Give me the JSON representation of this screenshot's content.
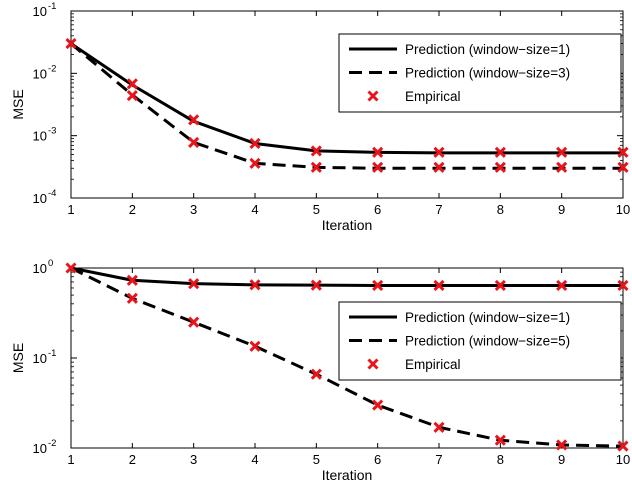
{
  "chart_data": [
    {
      "type": "line",
      "xlabel": "Iteration",
      "ylabel": "MSE",
      "yscale": "log",
      "xlim": [
        1,
        10
      ],
      "ylim": [
        0.0001,
        0.1
      ],
      "x": [
        1,
        2,
        3,
        4,
        5,
        6,
        7,
        8,
        9,
        10
      ],
      "xticks": [
        "1",
        "2",
        "3",
        "4",
        "5",
        "6",
        "7",
        "8",
        "9",
        "10"
      ],
      "ytick_values": [
        0.0001,
        0.001,
        0.01,
        0.1
      ],
      "ytick_exponents": [
        "-4",
        "-3",
        "-2",
        "-1"
      ],
      "legend_position": "top-right",
      "series": [
        {
          "name": "Prediction (window−size=1)",
          "style": "solid",
          "color": "#000000",
          "values": [
            0.03,
            0.0065,
            0.0017,
            0.00075,
            0.00057,
            0.00054,
            0.00053,
            0.00053,
            0.00053,
            0.00053
          ]
        },
        {
          "name": "Prediction (window−size=3)",
          "style": "dashed",
          "color": "#000000",
          "values": [
            0.03,
            0.0045,
            0.00078,
            0.00036,
            0.00031,
            0.0003,
            0.0003,
            0.0003,
            0.0003,
            0.0003
          ]
        },
        {
          "name": "Empirical",
          "style": "marker",
          "color": "#e8141a",
          "points": [
            [
              1,
              0.03
            ],
            [
              2,
              0.0068
            ],
            [
              3,
              0.0018
            ],
            [
              4,
              0.00075
            ],
            [
              5,
              0.00057
            ],
            [
              6,
              0.00054
            ],
            [
              7,
              0.00054
            ],
            [
              8,
              0.00054
            ],
            [
              9,
              0.00054
            ],
            [
              10,
              0.00054
            ],
            [
              2,
              0.0044
            ],
            [
              3,
              0.00078
            ],
            [
              4,
              0.00036
            ],
            [
              5,
              0.00031
            ],
            [
              6,
              0.00031
            ],
            [
              7,
              0.00031
            ],
            [
              8,
              0.00031
            ],
            [
              9,
              0.00031
            ],
            [
              10,
              0.00031
            ]
          ]
        }
      ]
    },
    {
      "type": "line",
      "xlabel": "Iteration",
      "ylabel": "MSE",
      "yscale": "log",
      "xlim": [
        1,
        10
      ],
      "ylim": [
        0.01,
        1
      ],
      "x": [
        1,
        2,
        3,
        4,
        5,
        6,
        7,
        8,
        9,
        10
      ],
      "xticks": [
        "1",
        "2",
        "3",
        "4",
        "5",
        "6",
        "7",
        "8",
        "9",
        "10"
      ],
      "ytick_values": [
        0.01,
        0.1,
        1
      ],
      "ytick_exponents": [
        "-2",
        "-1",
        "0"
      ],
      "legend_position": "right",
      "series": [
        {
          "name": "Prediction (window−size=1)",
          "style": "solid",
          "color": "#000000",
          "values": [
            1.0,
            0.73,
            0.67,
            0.65,
            0.645,
            0.64,
            0.64,
            0.64,
            0.64,
            0.64
          ]
        },
        {
          "name": "Prediction (window−size=5)",
          "style": "dashed",
          "color": "#000000",
          "values": [
            1.0,
            0.46,
            0.25,
            0.135,
            0.066,
            0.03,
            0.017,
            0.0122,
            0.0108,
            0.0105
          ]
        },
        {
          "name": "Empirical",
          "style": "marker",
          "color": "#e8141a",
          "points": [
            [
              1,
              1.0
            ],
            [
              2,
              0.73
            ],
            [
              3,
              0.67
            ],
            [
              4,
              0.65
            ],
            [
              5,
              0.645
            ],
            [
              6,
              0.64
            ],
            [
              7,
              0.64
            ],
            [
              8,
              0.64
            ],
            [
              9,
              0.64
            ],
            [
              10,
              0.64
            ],
            [
              2,
              0.46
            ],
            [
              3,
              0.25
            ],
            [
              4,
              0.135
            ],
            [
              5,
              0.066
            ],
            [
              6,
              0.03
            ],
            [
              7,
              0.017
            ],
            [
              8,
              0.0122
            ],
            [
              9,
              0.0108
            ],
            [
              10,
              0.0105
            ]
          ]
        }
      ]
    }
  ]
}
